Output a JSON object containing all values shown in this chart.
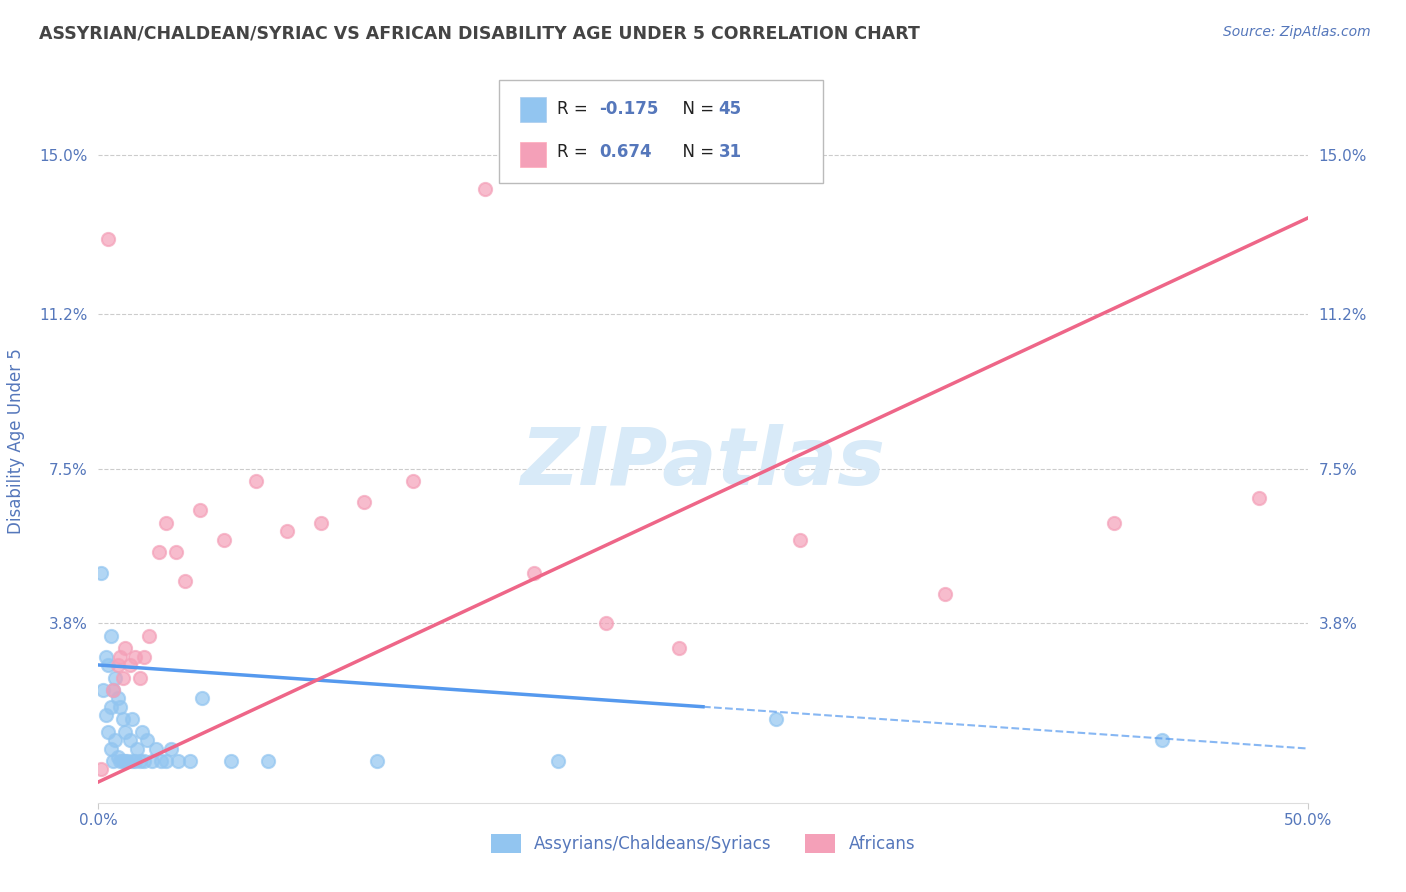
{
  "title": "ASSYRIAN/CHALDEAN/SYRIAC VS AFRICAN DISABILITY AGE UNDER 5 CORRELATION CHART",
  "source": "Source: ZipAtlas.com",
  "ylabel_label": "Disability Age Under 5",
  "y_tick_labels": [
    "3.8%",
    "7.5%",
    "11.2%",
    "15.0%"
  ],
  "y_tick_values": [
    0.038,
    0.075,
    0.112,
    0.15
  ],
  "x_lim": [
    0.0,
    0.5
  ],
  "y_lim": [
    -0.005,
    0.168
  ],
  "legend_label1": "Assyrians/Chaldeans/Syriacs",
  "legend_label2": "Africans",
  "R1": -0.175,
  "N1": 45,
  "R2": 0.674,
  "N2": 31,
  "color1": "#92C5F0",
  "color2": "#F4A0B8",
  "line_color1": "#5599EE",
  "line_color2": "#EE6688",
  "watermark_color": "#D8EAF8",
  "title_color": "#444444",
  "axis_label_color": "#5577BB",
  "tick_color": "#5577BB",
  "background_color": "#FFFFFF",
  "blue_line_x0": 0.0,
  "blue_line_y0": 0.028,
  "blue_line_x1": 0.5,
  "blue_line_y1": 0.008,
  "blue_line_solid_end": 0.25,
  "pink_line_x0": 0.0,
  "pink_line_y0": 0.0,
  "pink_line_x1": 0.5,
  "pink_line_y1": 0.135,
  "blue_scatter_x": [
    0.001,
    0.002,
    0.003,
    0.003,
    0.004,
    0.004,
    0.005,
    0.005,
    0.005,
    0.006,
    0.006,
    0.007,
    0.007,
    0.008,
    0.008,
    0.009,
    0.009,
    0.01,
    0.01,
    0.011,
    0.011,
    0.012,
    0.013,
    0.014,
    0.014,
    0.015,
    0.016,
    0.017,
    0.018,
    0.019,
    0.02,
    0.022,
    0.024,
    0.026,
    0.028,
    0.03,
    0.033,
    0.038,
    0.043,
    0.055,
    0.07,
    0.115,
    0.19,
    0.28,
    0.44
  ],
  "blue_scatter_y": [
    0.05,
    0.022,
    0.016,
    0.03,
    0.012,
    0.028,
    0.008,
    0.018,
    0.035,
    0.005,
    0.022,
    0.01,
    0.025,
    0.006,
    0.02,
    0.005,
    0.018,
    0.005,
    0.015,
    0.005,
    0.012,
    0.005,
    0.01,
    0.005,
    0.015,
    0.005,
    0.008,
    0.005,
    0.012,
    0.005,
    0.01,
    0.005,
    0.008,
    0.005,
    0.005,
    0.008,
    0.005,
    0.005,
    0.02,
    0.005,
    0.005,
    0.005,
    0.005,
    0.015,
    0.01
  ],
  "pink_scatter_x": [
    0.001,
    0.004,
    0.006,
    0.008,
    0.009,
    0.01,
    0.011,
    0.013,
    0.015,
    0.017,
    0.019,
    0.021,
    0.025,
    0.028,
    0.032,
    0.036,
    0.042,
    0.052,
    0.065,
    0.078,
    0.092,
    0.11,
    0.13,
    0.16,
    0.18,
    0.21,
    0.24,
    0.29,
    0.35,
    0.42,
    0.48
  ],
  "pink_scatter_y": [
    0.003,
    0.13,
    0.022,
    0.028,
    0.03,
    0.025,
    0.032,
    0.028,
    0.03,
    0.025,
    0.03,
    0.035,
    0.055,
    0.062,
    0.055,
    0.048,
    0.065,
    0.058,
    0.072,
    0.06,
    0.062,
    0.067,
    0.072,
    0.142,
    0.05,
    0.038,
    0.032,
    0.058,
    0.045,
    0.062,
    0.068
  ]
}
